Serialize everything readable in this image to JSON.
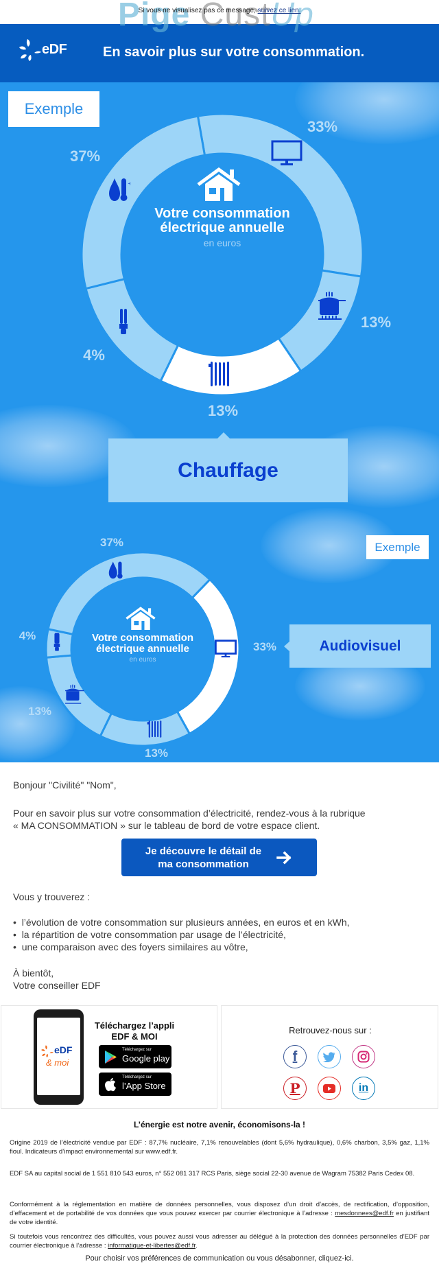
{
  "preheader": {
    "text": "Si vous ne visualisez pas ce message, ",
    "link": "suivez ce lien."
  },
  "watermark": {
    "part1": "Pige ",
    "part2": "Cust",
    "part3": "Up"
  },
  "header": {
    "logo_text": "eDF",
    "title": "En savoir plus sur votre consommation."
  },
  "colors": {
    "header_blue": "#065cbf",
    "sky_blue": "#2596ec",
    "segment_light": "#9dd5f8",
    "segment_highlight": "#ffffff",
    "icon_blue": "#0a3fcf",
    "cta_blue": "#0b58bf"
  },
  "infographic_1": {
    "badge": "Exemple",
    "center_title_line1": "Votre consommation",
    "center_title_line2": "électrique annuelle",
    "center_subtitle": "en euros",
    "highlighted": "Chauffage",
    "labels": {
      "audiovisuel": "33%",
      "cuisson": "13%",
      "chauffage": "13%",
      "eclairage": "4%",
      "eau_chaude": "37%"
    }
  },
  "infographic_2": {
    "badge": "Exemple",
    "center_title_line1": "Votre consommation",
    "center_title_line2": "électrique annuelle",
    "center_subtitle": "en euros",
    "highlighted": "Audiovisuel",
    "labels": {
      "audiovisuel": "33%",
      "cuisson": "13%",
      "chauffage": "13%",
      "eclairage": "4%",
      "eau_chaude": "37%"
    }
  },
  "chart_data": [
    {
      "type": "pie",
      "title": "Votre consommation électrique annuelle",
      "subtitle": "en euros",
      "categories": [
        "Audiovisuel",
        "Cuisson",
        "Chauffage",
        "Éclairage",
        "Eau chaude"
      ],
      "values": [
        33,
        13,
        13,
        4,
        37
      ],
      "unit": "%",
      "highlighted": "Chauffage",
      "badge": "Exemple"
    },
    {
      "type": "pie",
      "title": "Votre consommation électrique annuelle",
      "subtitle": "en euros",
      "categories": [
        "Audiovisuel",
        "Cuisson",
        "Chauffage",
        "Éclairage",
        "Eau chaude"
      ],
      "values": [
        33,
        13,
        13,
        4,
        37
      ],
      "unit": "%",
      "highlighted": "Audiovisuel",
      "badge": "Exemple"
    }
  ],
  "body": {
    "greeting": "Bonjour \"Civilité\" \"Nom\",",
    "intro_line1": "Pour en savoir plus sur votre consommation d’électricité, rendez-vous à la rubrique",
    "intro_line2": "« MA CONSOMMATION » sur le tableau de bord de votre espace client.",
    "cta_line1": "Je découvre le détail de",
    "cta_line2": "ma consommation",
    "cta_icon": "arrow-right",
    "list_intro": "Vous y trouverez :",
    "list": [
      "l’évolution de votre consommation sur plusieurs années, en euros et en kWh,",
      "la répartition de votre consommation par usage de l’électricité,",
      "une comparaison avec des foyers similaires au vôtre,"
    ],
    "signoff_line1": "À bientôt,",
    "signoff_line2": "Votre conseiller EDF"
  },
  "app_promo": {
    "title_line1": "Téléchargez l’appli",
    "title_line2": "EDF & MOI",
    "phone_logo": "eDF",
    "phone_tagline": "& moi",
    "google_small": "Téléchargez sur",
    "google_big": "Google play",
    "apple_small": "Téléchargez sur",
    "apple_big": "l’App Store"
  },
  "social": {
    "title": "Retrouvez-nous sur :",
    "networks": [
      {
        "name": "facebook",
        "glyph": "f",
        "color": "#3b5998"
      },
      {
        "name": "twitter",
        "glyph": "t",
        "color": "#55acee"
      },
      {
        "name": "instagram",
        "glyph": "◎",
        "color": "#c13584"
      },
      {
        "name": "pinterest",
        "glyph": "P",
        "color": "#cb2027"
      },
      {
        "name": "youtube",
        "glyph": "▶",
        "color": "#e52d27"
      },
      {
        "name": "linkedin",
        "glyph": "in",
        "color": "#0077b5"
      }
    ]
  },
  "footer": {
    "slogan": "L’énergie est notre avenir, économisons-la !",
    "origin": "Origine 2019 de l’électricité vendue par EDF : 87,7% nucléaire, 7,1% renouvelables (dont 5,6% hydraulique), 0,6% charbon, 3,5% gaz, 1,1% fioul. Indicateurs d’impact environnemental sur www.edf.fr.",
    "company": "EDF SA au capital social de 1 551 810 543 euros, n° 552 081 317 RCS Paris, siège social 22-30 avenue de Wagram 75382 Paris Cedex 08.",
    "gdpr_text": "Conformément à la réglementation en matière de données personnelles, vous disposez d’un droit d’accès, de rectification, d’opposition, d’effacement et de portabilité de vos données que vous pouvez exercer par courrier électronique à l’adresse : ",
    "gdpr_email": "mesdonnees@edf.fr",
    "gdpr_end": " en justifiant de votre identité.",
    "dpo_text": "Si toutefois vous rencontrez des difficultés, vous pouvez aussi vous adresser au délégué à la protection des données personnelles d’EDF par courrier électronique à l’adresse : ",
    "dpo_email": "informatique-et-libertes@edf.fr",
    "dpo_end": ".",
    "unsubscribe": "Pour choisir vos préférences de communication ou vous désabonner, cliquez-ici."
  }
}
